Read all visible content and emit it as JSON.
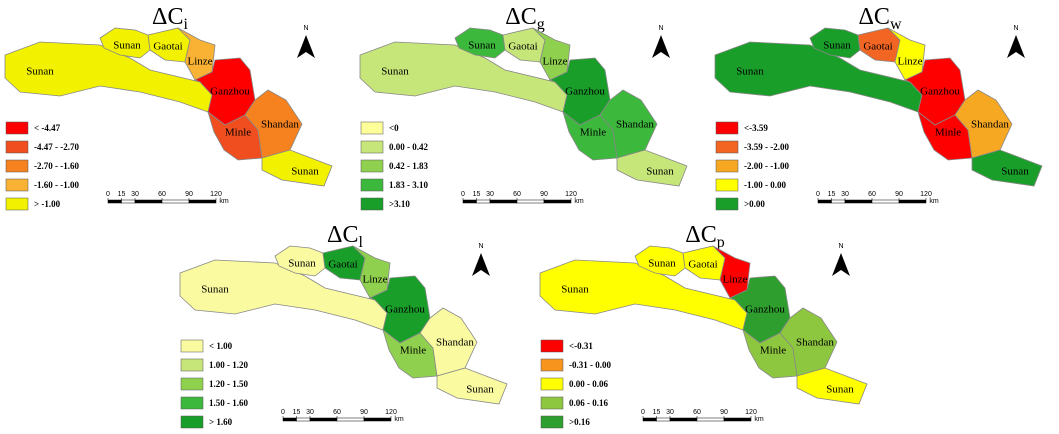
{
  "north": "N",
  "scale": {
    "ticks": [
      0,
      15,
      30,
      60,
      90,
      120
    ],
    "unit": "km"
  },
  "maps": [
    {
      "title": "ΔC",
      "subscript": "i",
      "legend": [
        {
          "label": "< -4.47",
          "color": "#ff0000"
        },
        {
          "label": "-4.47 - -2.70",
          "color": "#f04e1e"
        },
        {
          "label": "-2.70 - -1.60",
          "color": "#f5821f"
        },
        {
          "label": "-1.60 - -1.00",
          "color": "#f9b233"
        },
        {
          "label": "> -1.00",
          "color": "#f2f200"
        }
      ],
      "regions": [
        {
          "name": "Sunan",
          "color": "#f2f200"
        },
        {
          "name": "Sunan",
          "color": "#f2f200"
        },
        {
          "name": "Gaotai",
          "color": "#f2f200"
        },
        {
          "name": "Linze",
          "color": "#f9b233"
        },
        {
          "name": "Ganzhou",
          "color": "#ff0000"
        },
        {
          "name": "Minle",
          "color": "#f04e1e"
        },
        {
          "name": "Shandan",
          "color": "#f5821f"
        },
        {
          "name": "Sunan",
          "color": "#f2f200"
        }
      ]
    },
    {
      "title": "ΔC",
      "subscript": "g",
      "legend": [
        {
          "label": "<0",
          "color": "#ffff99"
        },
        {
          "label": "0.00 - 0.42",
          "color": "#c6e67a"
        },
        {
          "label": "0.42 - 1.83",
          "color": "#8fd14f"
        },
        {
          "label": "1.83 - 3.10",
          "color": "#3cb83c"
        },
        {
          "label": ">3.10",
          "color": "#1a9e2a"
        }
      ],
      "regions": [
        {
          "name": "Sunan",
          "color": "#c6e67a"
        },
        {
          "name": "Sunan",
          "color": "#3cb83c"
        },
        {
          "name": "Gaotai",
          "color": "#c6e67a"
        },
        {
          "name": "Linze",
          "color": "#8fd14f"
        },
        {
          "name": "Ganzhou",
          "color": "#1a9e2a"
        },
        {
          "name": "Minle",
          "color": "#3cb83c"
        },
        {
          "name": "Shandan",
          "color": "#3cb83c"
        },
        {
          "name": "Sunan",
          "color": "#c6e67a"
        }
      ]
    },
    {
      "title": "ΔC",
      "subscript": "w",
      "legend": [
        {
          "label": "<-3.59",
          "color": "#ff0000"
        },
        {
          "label": "-3.59 - -2.00",
          "color": "#f26522"
        },
        {
          "label": "-2.00 - -1.00",
          "color": "#f7a823"
        },
        {
          "label": "-1.00 - 0.00",
          "color": "#ffff00"
        },
        {
          "label": ">0.00",
          "color": "#1a9e2a"
        }
      ],
      "regions": [
        {
          "name": "Sunan",
          "color": "#1a9e2a"
        },
        {
          "name": "Sunan",
          "color": "#1a9e2a"
        },
        {
          "name": "Gaotai",
          "color": "#f26522"
        },
        {
          "name": "Linze",
          "color": "#ffff00"
        },
        {
          "name": "Ganzhou",
          "color": "#ff0000"
        },
        {
          "name": "Minle",
          "color": "#ff0000"
        },
        {
          "name": "Shandan",
          "color": "#f7a823"
        },
        {
          "name": "Sunan",
          "color": "#1a9e2a"
        }
      ]
    },
    {
      "title": "ΔC",
      "subscript": "l",
      "legend": [
        {
          "label": "< 1.00",
          "color": "#fafaa0"
        },
        {
          "label": "1.00 - 1.20",
          "color": "#c6e67a"
        },
        {
          "label": "1.20 - 1.50",
          "color": "#8fd14f"
        },
        {
          "label": "1.50 - 1.60",
          "color": "#3cb83c"
        },
        {
          "label": "> 1.60",
          "color": "#1a9e2a"
        }
      ],
      "regions": [
        {
          "name": "Sunan",
          "color": "#fafaa0"
        },
        {
          "name": "Sunan",
          "color": "#fafaa0"
        },
        {
          "name": "Gaotai",
          "color": "#1a9e2a"
        },
        {
          "name": "Linze",
          "color": "#8fd14f"
        },
        {
          "name": "Ganzhou",
          "color": "#1a9e2a"
        },
        {
          "name": "Minle",
          "color": "#8fd14f"
        },
        {
          "name": "Shandan",
          "color": "#fafaa0"
        },
        {
          "name": "Sunan",
          "color": "#fafaa0"
        }
      ]
    },
    {
      "title": "ΔC",
      "subscript": "p",
      "legend": [
        {
          "label": "<-0.31",
          "color": "#ff0000"
        },
        {
          "label": "-0.31 - 0.00",
          "color": "#f7941d"
        },
        {
          "label": "0.00 - 0.06",
          "color": "#ffff00"
        },
        {
          "label": "0.06 - 0.16",
          "color": "#8dc63f"
        },
        {
          "label": ">0.16",
          "color": "#2e9e2e"
        }
      ],
      "regions": [
        {
          "name": "Sunan",
          "color": "#ffff00"
        },
        {
          "name": "Sunan",
          "color": "#ffff00"
        },
        {
          "name": "Gaotai",
          "color": "#ffff00"
        },
        {
          "name": "Linze",
          "color": "#ff0000"
        },
        {
          "name": "Ganzhou",
          "color": "#2e9e2e"
        },
        {
          "name": "Minle",
          "color": "#8dc63f"
        },
        {
          "name": "Shandan",
          "color": "#8dc63f"
        },
        {
          "name": "Sunan",
          "color": "#ffff00"
        }
      ]
    }
  ]
}
